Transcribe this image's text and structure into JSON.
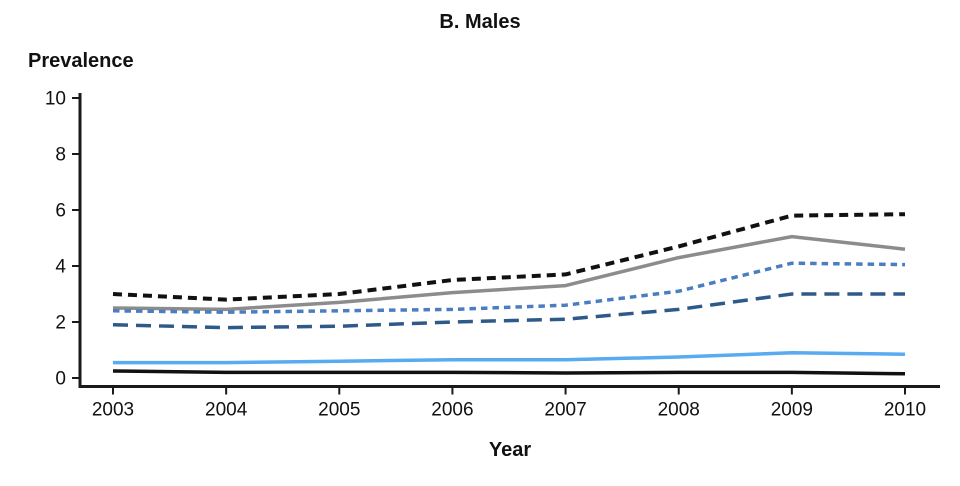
{
  "chart_data": {
    "type": "line",
    "title": "B. Males",
    "xlabel": "Year",
    "ylabel": "Prevalence",
    "x": [
      2003,
      2004,
      2005,
      2006,
      2007,
      2008,
      2009,
      2010
    ],
    "x_tick_labels": [
      "2003",
      "2004",
      "2005",
      "2006",
      "2007",
      "2008",
      "2009",
      "2010"
    ],
    "y_ticks": [
      0,
      2,
      4,
      6,
      8,
      10
    ],
    "ylim": [
      0,
      10
    ],
    "grid": false,
    "legend_position": "none",
    "axis_color": "#1a1a1a",
    "series": [
      {
        "name": "black-short-dashed",
        "color": "#111111",
        "line_style": "dashed",
        "dash": [
          9,
          6
        ],
        "width": 4,
        "values": [
          3.0,
          2.8,
          3.0,
          3.5,
          3.7,
          4.7,
          5.8,
          5.85
        ]
      },
      {
        "name": "gray-solid",
        "color": "#8c8c8c",
        "line_style": "solid",
        "dash": [],
        "width": 3.5,
        "values": [
          2.5,
          2.45,
          2.7,
          3.05,
          3.3,
          4.3,
          5.05,
          4.6
        ]
      },
      {
        "name": "medium-blue-dotted",
        "color": "#4a7ec0",
        "line_style": "dotted",
        "dash": [
          6.5,
          5
        ],
        "width": 3.5,
        "values": [
          2.4,
          2.35,
          2.4,
          2.45,
          2.6,
          3.1,
          4.1,
          4.05
        ]
      },
      {
        "name": "dark-blue-long-dashed",
        "color": "#2e5a8a",
        "line_style": "long-dashed",
        "dash": [
          15,
          8
        ],
        "width": 3.5,
        "values": [
          1.9,
          1.8,
          1.85,
          2.0,
          2.1,
          2.45,
          3.0,
          3.0
        ]
      },
      {
        "name": "light-blue-solid",
        "color": "#58abf0",
        "line_style": "solid",
        "dash": [],
        "width": 3.5,
        "values": [
          0.55,
          0.55,
          0.6,
          0.65,
          0.65,
          0.75,
          0.9,
          0.85
        ]
      },
      {
        "name": "black-solid",
        "color": "#111111",
        "line_style": "solid",
        "dash": [],
        "width": 3.5,
        "values": [
          0.25,
          0.2,
          0.2,
          0.2,
          0.18,
          0.2,
          0.2,
          0.15
        ]
      }
    ]
  }
}
